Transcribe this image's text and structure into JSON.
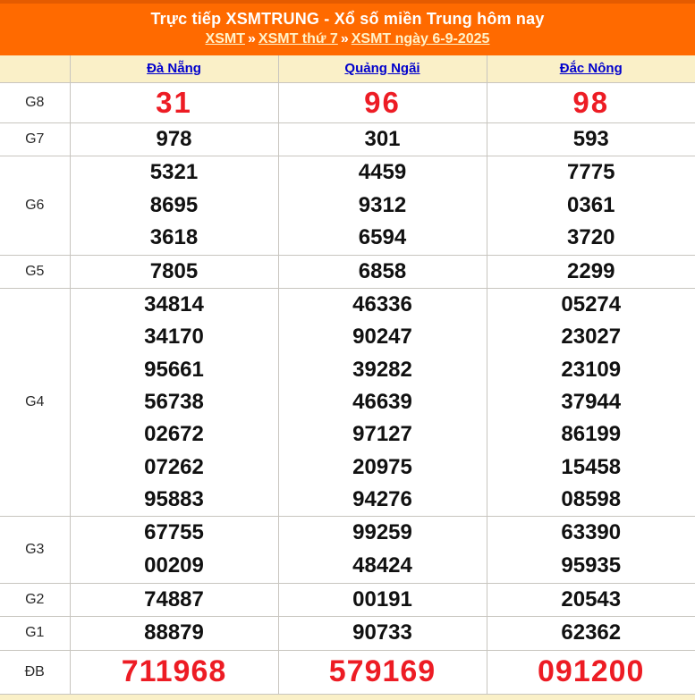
{
  "header": {
    "title": "Trực tiếp XSMTRUNG - Xổ số miền Trung hôm nay",
    "separator": "»",
    "breadcrumb": [
      {
        "label": "XSMT"
      },
      {
        "label": "XSMT thứ 7"
      },
      {
        "label": "XSMT ngày 6-9-2025"
      }
    ]
  },
  "table": {
    "provinces": [
      "Đà Nẵng",
      "Quảng Ngãi",
      "Đắc Nông"
    ],
    "rows": [
      {
        "key": "g8",
        "prize": "G8",
        "highlight": true,
        "values": [
          [
            "31"
          ],
          [
            "96"
          ],
          [
            "98"
          ]
        ]
      },
      {
        "key": "g7",
        "prize": "G7",
        "values": [
          [
            "978"
          ],
          [
            "301"
          ],
          [
            "593"
          ]
        ]
      },
      {
        "key": "g6",
        "prize": "G6",
        "values": [
          [
            "5321",
            "8695",
            "3618"
          ],
          [
            "4459",
            "9312",
            "6594"
          ],
          [
            "7775",
            "0361",
            "3720"
          ]
        ]
      },
      {
        "key": "g5",
        "prize": "G5",
        "values": [
          [
            "7805"
          ],
          [
            "6858"
          ],
          [
            "2299"
          ]
        ]
      },
      {
        "key": "g4",
        "prize": "G4",
        "values": [
          [
            "34814",
            "34170",
            "95661",
            "56738",
            "02672",
            "07262",
            "95883"
          ],
          [
            "46336",
            "90247",
            "39282",
            "46639",
            "97127",
            "20975",
            "94276"
          ],
          [
            "05274",
            "23027",
            "23109",
            "37944",
            "86199",
            "15458",
            "08598"
          ]
        ]
      },
      {
        "key": "g3",
        "prize": "G3",
        "values": [
          [
            "67755",
            "00209"
          ],
          [
            "99259",
            "48424"
          ],
          [
            "63390",
            "95935"
          ]
        ]
      },
      {
        "key": "g2",
        "prize": "G2",
        "values": [
          [
            "74887"
          ],
          [
            "00191"
          ],
          [
            "20543"
          ]
        ]
      },
      {
        "key": "g1",
        "prize": "G1",
        "values": [
          [
            "88879"
          ],
          [
            "90733"
          ],
          [
            "62362"
          ]
        ]
      },
      {
        "key": "db",
        "prize": "ĐB",
        "highlight": true,
        "values": [
          [
            "711968"
          ],
          [
            "579169"
          ],
          [
            "091200"
          ]
        ]
      }
    ]
  },
  "colors": {
    "banner_orange": "#FF6A00",
    "banner_top": "#E55B00",
    "title_text": "#FFFFFF",
    "breadcrumb_link": "#FFF2C8",
    "header_bg": "#FAF0C8",
    "header_link": "#0000CC",
    "number_red": "#ED1C24",
    "number_black": "#111111",
    "border": "#C8C5BF"
  }
}
